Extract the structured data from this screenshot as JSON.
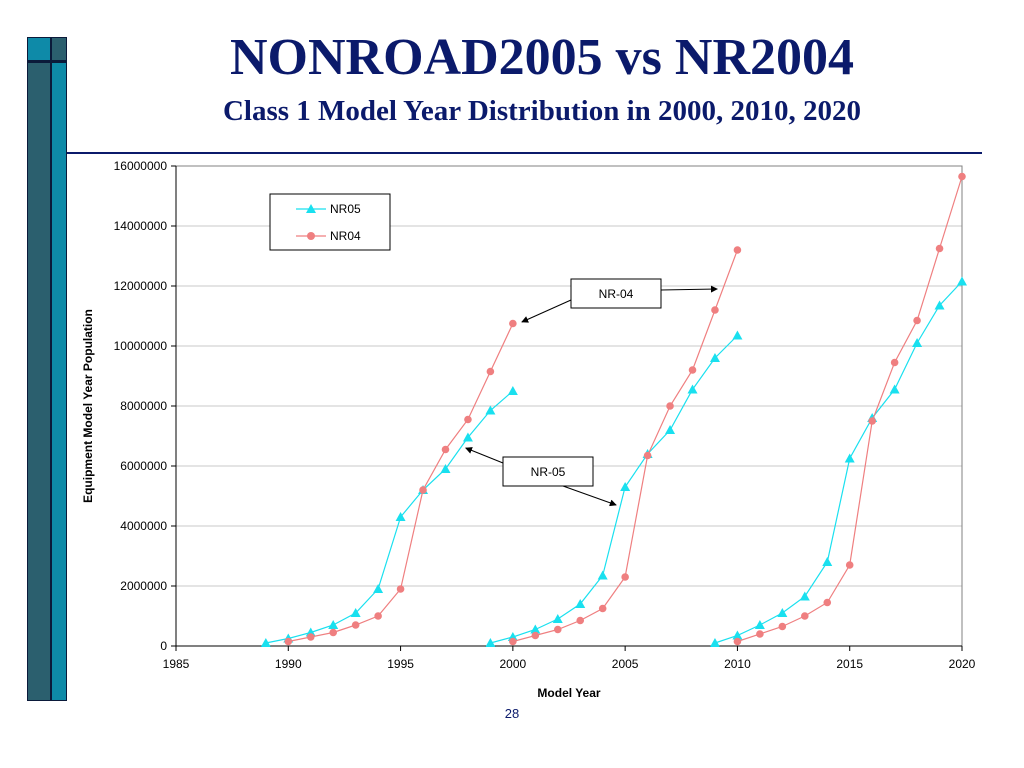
{
  "slide": {
    "title": "NONROAD2005 vs NR2004",
    "subtitle": "Class 1 Model Year Distribution in 2000, 2010, 2020",
    "page_number": "28"
  },
  "colors": {
    "title": "#0b1a6b",
    "sidebar_dark": "#2b5f6e",
    "sidebar_light": "#0e8aa8",
    "sidebar_border": "#0b1a3a",
    "rule": "#0b1a6b",
    "nr05": "#19e0ef",
    "nr04": "#ef7f80"
  },
  "chart_data": {
    "type": "line",
    "title": "",
    "xlabel": "Model Year",
    "ylabel": "Equipment Model Year Population",
    "xlim": [
      1985,
      2020
    ],
    "ylim": [
      0,
      16000000
    ],
    "xticks": [
      "1985",
      "1990",
      "1995",
      "2000",
      "2005",
      "2010",
      "2015",
      "2020"
    ],
    "yticks": [
      "0",
      "2000000",
      "4000000",
      "6000000",
      "8000000",
      "10000000",
      "12000000",
      "14000000",
      "16000000"
    ],
    "grid": "horizontal",
    "legend": {
      "position": "top-left",
      "entries": [
        "NR05",
        "NR04"
      ]
    },
    "series": [
      {
        "name": "NR05",
        "marker": "triangle",
        "segments": [
          {
            "x": [
              1989,
              1990,
              1991,
              1992,
              1993,
              1994,
              1995,
              1996,
              1997,
              1998,
              1999,
              2000
            ],
            "y": [
              100000,
              250000,
              450000,
              700000,
              1100000,
              1900000,
              4300000,
              5200000,
              5900000,
              6950000,
              7850000,
              8500000
            ]
          },
          {
            "x": [
              1999,
              2000,
              2001,
              2002,
              2003,
              2004,
              2005,
              2006,
              2007,
              2008,
              2009,
              2010
            ],
            "y": [
              100000,
              300000,
              550000,
              900000,
              1400000,
              2350000,
              5300000,
              6400000,
              7200000,
              8550000,
              9600000,
              10350000
            ]
          },
          {
            "x": [
              2009,
              2010,
              2011,
              2012,
              2013,
              2014,
              2015,
              2016,
              2017,
              2018,
              2019,
              2020
            ],
            "y": [
              100000,
              350000,
              700000,
              1100000,
              1650000,
              2800000,
              6250000,
              7600000,
              8550000,
              10100000,
              11350000,
              12150000
            ]
          }
        ]
      },
      {
        "name": "NR04",
        "marker": "circle",
        "segments": [
          {
            "x": [
              1990,
              1991,
              1992,
              1993,
              1994,
              1995,
              1996,
              1997,
              1998,
              1999,
              2000
            ],
            "y": [
              150000,
              300000,
              450000,
              700000,
              1000000,
              1900000,
              5200000,
              6550000,
              7550000,
              9150000,
              10750000
            ]
          },
          {
            "x": [
              2000,
              2001,
              2002,
              2003,
              2004,
              2005,
              2006,
              2007,
              2008,
              2009,
              2010
            ],
            "y": [
              150000,
              350000,
              550000,
              850000,
              1250000,
              2300000,
              6350000,
              8000000,
              9200000,
              11200000,
              13200000
            ]
          },
          {
            "x": [
              2010,
              2011,
              2012,
              2013,
              2014,
              2015,
              2016,
              2017,
              2018,
              2019,
              2020
            ],
            "y": [
              150000,
              400000,
              650000,
              1000000,
              1450000,
              2700000,
              7500000,
              9450000,
              10850000,
              13250000,
              15650000
            ]
          }
        ]
      }
    ],
    "annotations": [
      {
        "text": "NR-04",
        "arrow_to": {
          "x": 2000.4,
          "y": 10800000
        },
        "arrow_to2": {
          "x": 2009.1,
          "y": 11900000
        }
      },
      {
        "text": "NR-05",
        "arrow_to": {
          "x": 1997.9,
          "y": 6600000
        },
        "arrow_to2": {
          "x": 2004.6,
          "y": 4700000
        }
      }
    ]
  }
}
